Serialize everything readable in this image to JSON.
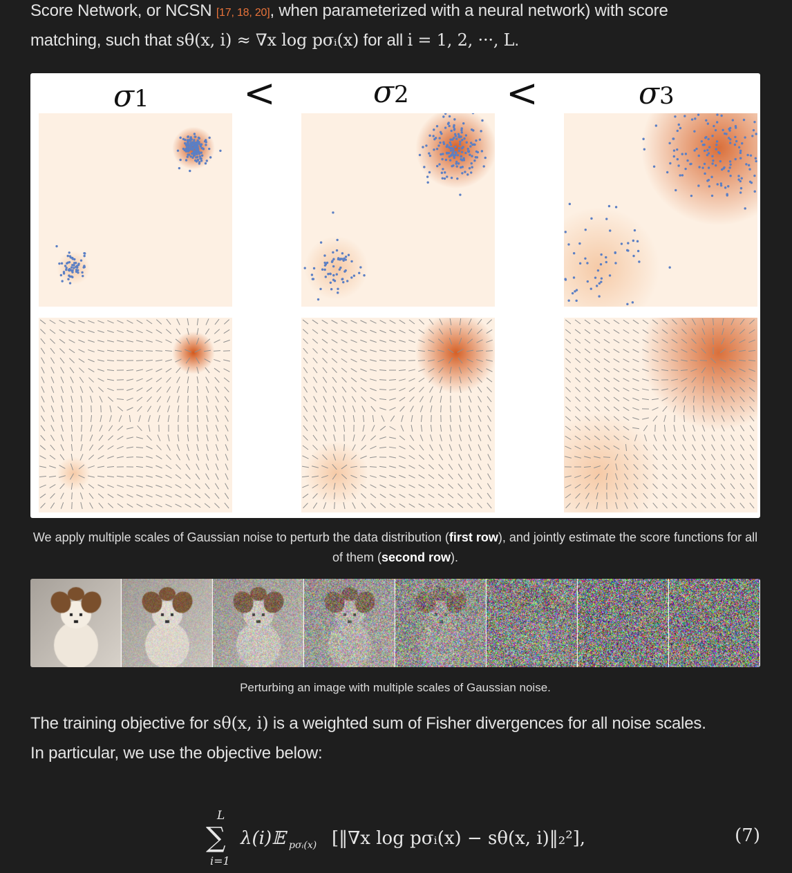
{
  "intro": {
    "line1_text": "Score Network, or NCSN ",
    "line1_cite": "[17, 18, 20]",
    "line1_tail": ", when parameterized with a neural network) with score",
    "line2_text": "matching, such that ",
    "line2_math": "sθ(x, i) ≈ ∇x log pσᵢ(x)",
    "line2_tail": " for all ",
    "line2_math2": "i = 1, 2, ···, L",
    "line2_end": "."
  },
  "figure1": {
    "scale_labels": [
      "σ",
      "σ",
      "σ"
    ],
    "scale_subscripts": [
      "1",
      "2",
      "3"
    ],
    "separators": [
      "<",
      "<"
    ],
    "colors": {
      "density": "#d3581c",
      "points": "#5b7fc4",
      "arrows": "#8f8f8f",
      "bg": "#fdf0e3"
    }
  },
  "caption1": {
    "part1": "We apply multiple scales of Gaussian noise to perturb the data distribution (",
    "bold1": "first row",
    "part2": "), and jointly estimate the score functions for all of them (",
    "bold2": "second row",
    "part3": ")."
  },
  "figure2": {
    "tile_count": 8,
    "subject": "dog-photo-icon"
  },
  "caption2": "Perturbing an image with multiple scales of Gaussian noise.",
  "body": {
    "line1_start": "The training objective for ",
    "line1_math": "sθ(x, i)",
    "line1_end": " is a weighted sum of Fisher divergences for all noise scales.",
    "line2": "In particular, we use the objective below:"
  },
  "equation": {
    "sum_top": "L",
    "sum_bottom": "i=1",
    "body": "λ(i)𝔼",
    "body_sub": "pσᵢ(x)",
    "body_rest": "[‖∇x log pσᵢ(x) − sθ(x, i)‖₂²],",
    "number": "(7)"
  }
}
